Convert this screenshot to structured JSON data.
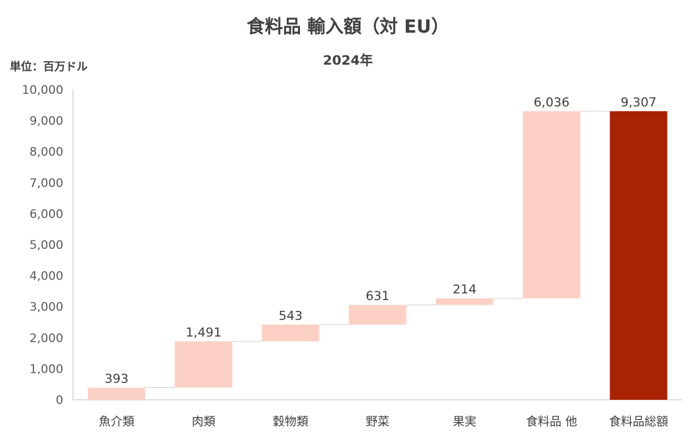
{
  "title": "食料品 輸入額（対 EU）",
  "subtitle": "2024年",
  "unit_label": "単位：百万ドル",
  "colors": {
    "increase": "#FCD0C5",
    "total": "#A82204",
    "connector": "#D0D0D0",
    "axis": "#BFBFBF"
  },
  "chart_data": {
    "type": "waterfall",
    "title": "食料品 輸入額（対 EU）",
    "subtitle": "2024年",
    "ylabel": "単位：百万ドル",
    "ylim": [
      0,
      10000
    ],
    "yticks": [
      0,
      1000,
      2000,
      3000,
      4000,
      5000,
      6000,
      7000,
      8000,
      9000,
      10000
    ],
    "ytick_labels": [
      "0",
      "1,000",
      "2,000",
      "3,000",
      "4,000",
      "5,000",
      "6,000",
      "7,000",
      "8,000",
      "9,000",
      "10,000"
    ],
    "grid": false,
    "categories": [
      "魚介類",
      "肉類",
      "穀物類",
      "野菜",
      "果実",
      "食料品 他",
      "食料品総額"
    ],
    "values": [
      393,
      1491,
      543,
      631,
      214,
      6036,
      9307
    ],
    "value_labels": [
      "393",
      "1,491",
      "543",
      "631",
      "214",
      "6,036",
      "9,307"
    ],
    "is_total": [
      false,
      false,
      false,
      false,
      false,
      false,
      true
    ]
  }
}
